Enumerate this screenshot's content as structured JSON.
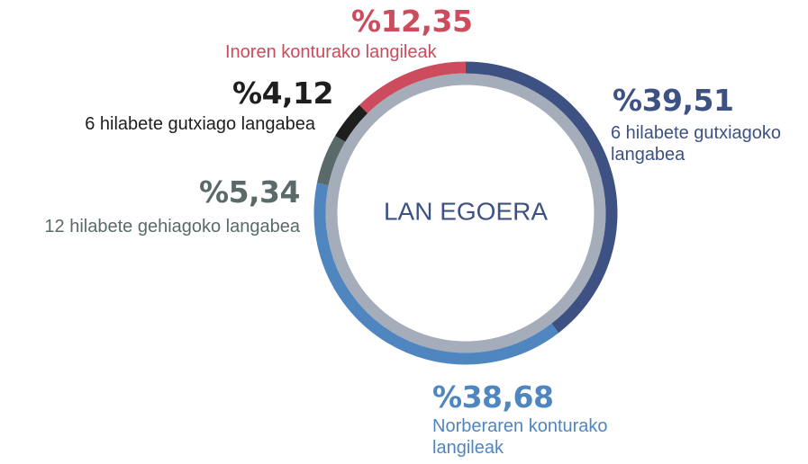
{
  "chart_data": {
    "type": "donut",
    "title": "LAN EGOERA",
    "categories": [
      "6 hilabete gutxiagoko langabea",
      "Norberaren konturako langileak",
      "12 hilabete gehiagoko langabea",
      "6 hilabete gutxiago langabea",
      "Inoren konturako langileak"
    ],
    "values": [
      39.51,
      38.68,
      5.34,
      4.12,
      12.35
    ],
    "value_labels": [
      "%39,51",
      "%38,68",
      "%5,34",
      "%4,12",
      "%12,35"
    ],
    "colors": [
      "#3d5283",
      "#4f86c0",
      "#5a6a6b",
      "#1e1e1e",
      "#cc4b5c"
    ]
  }
}
